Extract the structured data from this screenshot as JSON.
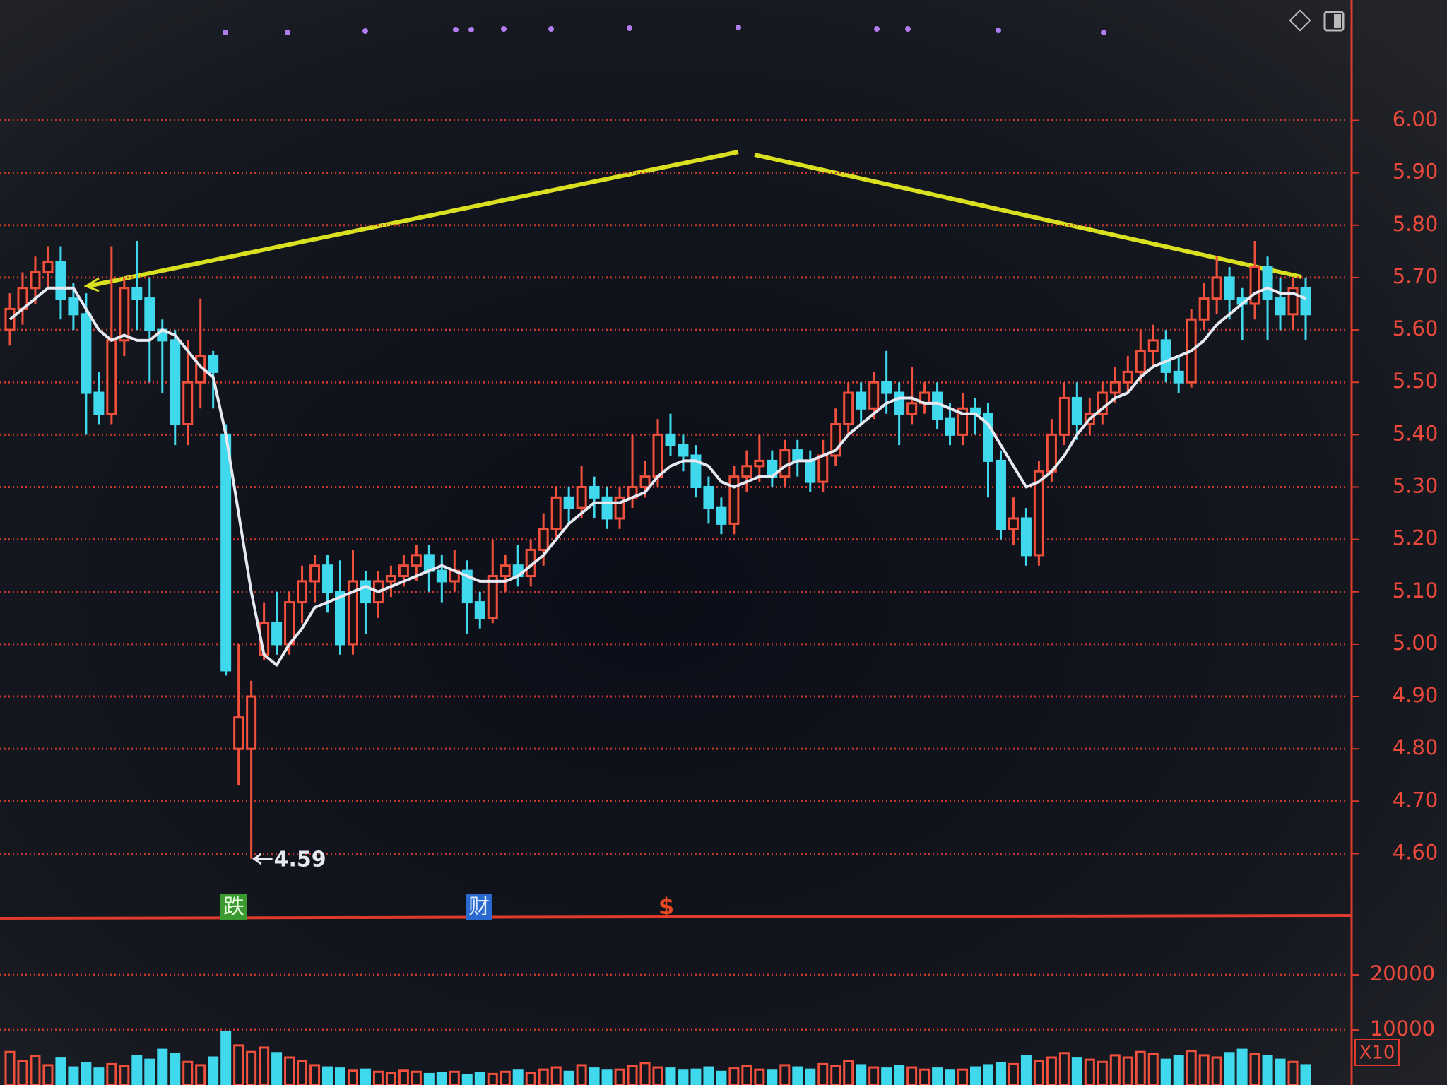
{
  "chart_data": {
    "type": "candlestick",
    "up_color": "#f0503c",
    "down_color": "#3fd8ec",
    "grid": true,
    "ylim": [
      4.49,
      6.23
    ],
    "yticks": [
      {
        "value": 6.0,
        "label": "6.00"
      },
      {
        "value": 5.9,
        "label": "5.90"
      },
      {
        "value": 5.8,
        "label": "5.80"
      },
      {
        "value": 5.7,
        "label": "5.70"
      },
      {
        "value": 5.6,
        "label": "5.60"
      },
      {
        "value": 5.5,
        "label": "5.50"
      },
      {
        "value": 5.4,
        "label": "5.40"
      },
      {
        "value": 5.3,
        "label": "5.30"
      },
      {
        "value": 5.2,
        "label": "5.20"
      },
      {
        "value": 5.1,
        "label": "5.10"
      },
      {
        "value": 5.0,
        "label": "5.00"
      },
      {
        "value": 4.9,
        "label": "4.90"
      },
      {
        "value": 4.8,
        "label": "4.80"
      },
      {
        "value": 4.7,
        "label": "4.70"
      },
      {
        "value": 4.6,
        "label": "4.60"
      }
    ],
    "open": [
      5.6,
      5.64,
      5.68,
      5.71,
      5.73,
      5.66,
      5.63,
      5.48,
      5.44,
      5.58,
      5.68,
      5.66,
      5.6,
      5.58,
      5.42,
      5.5,
      5.55,
      5.4,
      4.8,
      4.8,
      4.98,
      5.04,
      5.0,
      5.08,
      5.12,
      5.15,
      5.1,
      5.0,
      5.12,
      5.08,
      5.12,
      5.13,
      5.15,
      5.17,
      5.14,
      5.12,
      5.14,
      5.08,
      5.05,
      5.13,
      5.15,
      5.13,
      5.18,
      5.22,
      5.28,
      5.26,
      5.3,
      5.28,
      5.24,
      5.28,
      5.3,
      5.32,
      5.4,
      5.38,
      5.36,
      5.3,
      5.26,
      5.23,
      5.32,
      5.34,
      5.35,
      5.32,
      5.37,
      5.35,
      5.31,
      5.36,
      5.42,
      5.48,
      5.45,
      5.5,
      5.48,
      5.44,
      5.46,
      5.48,
      5.43,
      5.4,
      5.45,
      5.44,
      5.35,
      5.22,
      5.24,
      5.17,
      5.33,
      5.4,
      5.47,
      5.42,
      5.44,
      5.48,
      5.5,
      5.52,
      5.56,
      5.58,
      5.52,
      5.5,
      5.62,
      5.66,
      5.7,
      5.66,
      5.65,
      5.72,
      5.66,
      5.63,
      5.68
    ],
    "high": [
      5.67,
      5.71,
      5.74,
      5.76,
      5.76,
      5.69,
      5.67,
      5.52,
      5.76,
      5.7,
      5.77,
      5.7,
      5.62,
      5.6,
      5.58,
      5.66,
      5.56,
      5.42,
      5.0,
      4.93,
      5.08,
      5.1,
      5.1,
      5.15,
      5.17,
      5.17,
      5.16,
      5.18,
      5.14,
      5.14,
      5.15,
      5.17,
      5.19,
      5.19,
      5.17,
      5.18,
      5.16,
      5.1,
      5.2,
      5.17,
      5.19,
      5.2,
      5.25,
      5.3,
      5.3,
      5.34,
      5.32,
      5.3,
      5.3,
      5.4,
      5.35,
      5.43,
      5.44,
      5.4,
      5.38,
      5.32,
      5.28,
      5.34,
      5.37,
      5.4,
      5.37,
      5.39,
      5.39,
      5.37,
      5.39,
      5.45,
      5.5,
      5.5,
      5.52,
      5.56,
      5.5,
      5.53,
      5.5,
      5.5,
      5.46,
      5.48,
      5.47,
      5.46,
      5.37,
      5.28,
      5.26,
      5.35,
      5.43,
      5.5,
      5.5,
      5.47,
      5.5,
      5.53,
      5.55,
      5.6,
      5.61,
      5.6,
      5.55,
      5.64,
      5.69,
      5.74,
      5.72,
      5.68,
      5.77,
      5.74,
      5.7,
      5.7,
      5.7
    ],
    "low": [
      5.57,
      5.61,
      5.65,
      5.68,
      5.62,
      5.6,
      5.4,
      5.42,
      5.42,
      5.55,
      5.6,
      5.5,
      5.48,
      5.38,
      5.38,
      5.45,
      5.45,
      4.94,
      4.73,
      4.59,
      4.97,
      4.98,
      4.98,
      5.04,
      5.08,
      5.06,
      4.98,
      4.98,
      5.02,
      5.05,
      5.09,
      5.11,
      5.12,
      5.1,
      5.08,
      5.1,
      5.02,
      5.03,
      5.04,
      5.1,
      5.11,
      5.11,
      5.15,
      5.2,
      5.23,
      5.24,
      5.24,
      5.22,
      5.22,
      5.26,
      5.28,
      5.3,
      5.36,
      5.33,
      5.28,
      5.23,
      5.21,
      5.21,
      5.29,
      5.31,
      5.3,
      5.3,
      5.32,
      5.29,
      5.29,
      5.34,
      5.4,
      5.42,
      5.43,
      5.44,
      5.38,
      5.42,
      5.44,
      5.41,
      5.38,
      5.38,
      5.4,
      5.28,
      5.2,
      5.19,
      5.15,
      5.15,
      5.31,
      5.38,
      5.39,
      5.4,
      5.42,
      5.46,
      5.48,
      5.5,
      5.53,
      5.5,
      5.48,
      5.49,
      5.6,
      5.63,
      5.62,
      5.58,
      5.62,
      5.58,
      5.6,
      5.6,
      5.58
    ],
    "close": [
      5.64,
      5.68,
      5.71,
      5.73,
      5.66,
      5.63,
      5.48,
      5.44,
      5.58,
      5.68,
      5.66,
      5.6,
      5.58,
      5.42,
      5.5,
      5.55,
      5.52,
      4.95,
      4.86,
      4.9,
      5.04,
      5.0,
      5.08,
      5.12,
      5.15,
      5.1,
      5.0,
      5.12,
      5.08,
      5.12,
      5.13,
      5.15,
      5.17,
      5.14,
      5.12,
      5.14,
      5.08,
      5.05,
      5.13,
      5.15,
      5.13,
      5.18,
      5.22,
      5.28,
      5.26,
      5.3,
      5.28,
      5.24,
      5.28,
      5.3,
      5.32,
      5.4,
      5.38,
      5.36,
      5.3,
      5.26,
      5.23,
      5.32,
      5.34,
      5.35,
      5.32,
      5.37,
      5.35,
      5.31,
      5.36,
      5.42,
      5.48,
      5.45,
      5.5,
      5.48,
      5.44,
      5.46,
      5.48,
      5.43,
      5.4,
      5.45,
      5.44,
      5.35,
      5.22,
      5.24,
      5.17,
      5.33,
      5.4,
      5.47,
      5.42,
      5.44,
      5.48,
      5.5,
      5.52,
      5.56,
      5.58,
      5.52,
      5.5,
      5.62,
      5.66,
      5.7,
      5.66,
      5.65,
      5.72,
      5.66,
      5.63,
      5.68,
      5.63
    ],
    "ma": {
      "color": "#e6e8f2",
      "values": [
        5.62,
        5.64,
        5.66,
        5.68,
        5.68,
        5.68,
        5.64,
        5.6,
        5.58,
        5.59,
        5.58,
        5.58,
        5.6,
        5.59,
        5.56,
        5.53,
        5.51,
        5.4,
        5.25,
        5.1,
        4.98,
        4.96,
        5.0,
        5.03,
        5.07,
        5.08,
        5.09,
        5.1,
        5.11,
        5.1,
        5.11,
        5.12,
        5.13,
        5.14,
        5.15,
        5.14,
        5.13,
        5.12,
        5.12,
        5.12,
        5.13,
        5.15,
        5.17,
        5.2,
        5.23,
        5.25,
        5.27,
        5.27,
        5.27,
        5.28,
        5.29,
        5.32,
        5.34,
        5.35,
        5.35,
        5.34,
        5.31,
        5.3,
        5.31,
        5.32,
        5.32,
        5.34,
        5.35,
        5.35,
        5.36,
        5.37,
        5.4,
        5.42,
        5.44,
        5.46,
        5.47,
        5.47,
        5.46,
        5.46,
        5.45,
        5.44,
        5.44,
        5.42,
        5.38,
        5.34,
        5.3,
        5.31,
        5.33,
        5.36,
        5.4,
        5.43,
        5.45,
        5.47,
        5.48,
        5.51,
        5.53,
        5.54,
        5.55,
        5.56,
        5.58,
        5.61,
        5.63,
        5.65,
        5.67,
        5.68,
        5.67,
        5.67,
        5.66
      ]
    },
    "low_annotation": 4.59,
    "markers": [
      "跌",
      "财",
      "$"
    ],
    "volume": {
      "y2lim": [
        0,
        29500
      ],
      "y2ticks": [
        20000,
        10000
      ],
      "unit_label": "X10",
      "values": [
        6000,
        4400,
        5200,
        3600,
        4800,
        3200,
        4000,
        3000,
        3800,
        3400,
        5200,
        4600,
        6400,
        5600,
        4200,
        3600,
        5000,
        9600,
        7200,
        6000,
        6800,
        5800,
        5000,
        4400,
        3600,
        3200,
        3000,
        2600,
        2800,
        2400,
        2200,
        2600,
        2400,
        2000,
        2200,
        2400,
        1800,
        2200,
        2000,
        2400,
        2600,
        2200,
        2800,
        3200,
        2400,
        3600,
        3000,
        2600,
        2800,
        3400,
        4000,
        3200,
        3000,
        2600,
        2800,
        3200,
        2400,
        3000,
        3400,
        2800,
        2600,
        3600,
        3200,
        2800,
        3800,
        3400,
        4400,
        3600,
        3200,
        3000,
        3400,
        3200,
        2800,
        3000,
        2600,
        2800,
        3200,
        3600,
        4000,
        3800,
        5200,
        4400,
        5000,
        5800,
        4800,
        4600,
        4200,
        5400,
        5000,
        6000,
        5600,
        4600,
        5200,
        6200,
        5400,
        5000,
        5800,
        6400,
        5600,
        5200,
        4600,
        4200,
        3600
      ]
    }
  }
}
